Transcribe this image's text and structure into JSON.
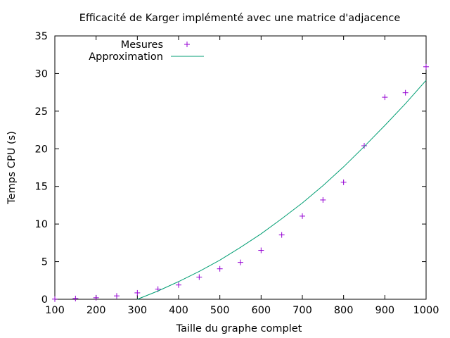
{
  "chart_data": {
    "type": "scatter",
    "title": "Efficacité de Karger implémenté avec une matrice d'adjacence",
    "xlabel": "Taille du graphe complet",
    "ylabel": "Temps CPU (s)",
    "xlim": [
      100,
      1000
    ],
    "ylim": [
      0,
      35
    ],
    "xticks": [
      100,
      200,
      300,
      400,
      500,
      600,
      700,
      800,
      900,
      1000
    ],
    "yticks": [
      0,
      5,
      10,
      15,
      20,
      25,
      30,
      35
    ],
    "grid": false,
    "legend_position": "top-left",
    "series": [
      {
        "name": "Mesures",
        "kind": "points",
        "marker": "plus",
        "color": "#9400d3",
        "x": [
          100,
          150,
          200,
          250,
          300,
          350,
          400,
          450,
          500,
          550,
          600,
          650,
          700,
          750,
          800,
          850,
          900,
          950,
          1000
        ],
        "y": [
          0.02,
          0.1,
          0.2,
          0.45,
          0.85,
          1.35,
          1.9,
          2.95,
          4.05,
          4.9,
          6.5,
          8.55,
          11.05,
          13.2,
          15.55,
          20.4,
          26.85,
          27.45,
          30.9
        ]
      },
      {
        "name": "Approximation",
        "kind": "line",
        "color": "#009e73",
        "x": [
          300,
          350,
          400,
          450,
          500,
          550,
          600,
          650,
          700,
          750,
          800,
          850,
          900,
          950,
          1000
        ],
        "y": [
          0.0,
          1.1,
          2.35,
          3.7,
          5.2,
          6.9,
          8.7,
          10.7,
          12.8,
          15.1,
          17.6,
          20.3,
          23.1,
          26.0,
          29.1
        ]
      }
    ]
  }
}
